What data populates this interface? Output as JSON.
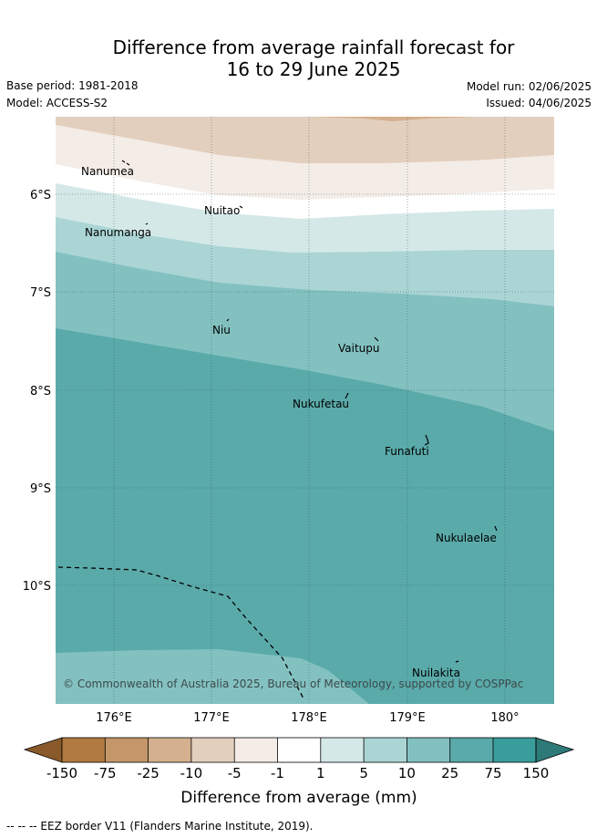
{
  "header": {
    "title_line1": "Difference from average rainfall forecast for",
    "title_line2": "16 to 29 June 2025",
    "base_period": "Base period: 1981-2018",
    "model": "Model: ACCESS-S2",
    "model_run": "Model run: 02/06/2025",
    "issued": "Issued: 04/06/2025"
  },
  "map": {
    "x_ticks": [
      "176°E",
      "177°E",
      "178°E",
      "179°E",
      "180°"
    ],
    "y_ticks": [
      "6°S",
      "7°S",
      "8°S",
      "9°S",
      "10°S"
    ],
    "places": [
      {
        "name": "Nanumea",
        "lon": 176.1,
        "lat": -5.66
      },
      {
        "name": "Nuitao",
        "lon": 177.3,
        "lat": -6.11
      },
      {
        "name": "Nanumanga",
        "lon": 176.33,
        "lat": -6.3
      },
      {
        "name": "Niu",
        "lon": 177.16,
        "lat": -7.31
      },
      {
        "name": "Vaitupu",
        "lon": 178.67,
        "lat": -7.48
      },
      {
        "name": "Nukufetau",
        "lon": 178.38,
        "lat": -8.02
      },
      {
        "name": "Funafuti",
        "lon": 179.2,
        "lat": -8.52
      },
      {
        "name": "Nukulaelae",
        "lon": 179.83,
        "lat": -9.38
      },
      {
        "name": "Nuilakita",
        "lon": 179.5,
        "lat": -10.78
      }
    ],
    "copyright": "© Commonwealth of Australia 2025, Bureau of Meteorology, supported by COSPPac",
    "eez_border": true
  },
  "legend": {
    "title": "Difference from average (mm)",
    "tick_labels": [
      "-150",
      "-75",
      "-25",
      "-10",
      "-5",
      "-1",
      "1",
      "5",
      "10",
      "25",
      "75",
      "150"
    ],
    "colors": [
      "#8a5a2c",
      "#b07a40",
      "#c4966a",
      "#d4b08e",
      "#e3cfbd",
      "#f4ece7",
      "#ffffff",
      "#d5e8e8",
      "#abd5d5",
      "#83c1c1",
      "#5aaaaa",
      "#399d9b",
      "#2e7a78"
    ],
    "footnote": "--  --  -- EEZ border V11 (Flanders Marine Institute, 2019)."
  }
}
